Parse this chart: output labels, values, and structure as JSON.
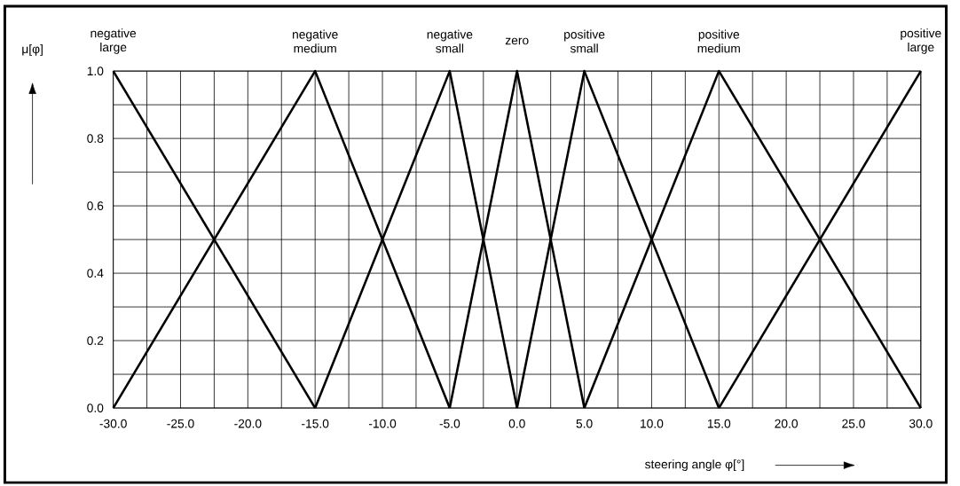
{
  "chart_data": {
    "type": "line",
    "xlabel": "steering angle   φ[°]",
    "ylabel": "μ[φ]",
    "series": [
      {
        "name": "negative large",
        "color": "#000000",
        "x": [
          -30,
          -15
        ],
        "values": [
          1.0,
          0.0
        ]
      },
      {
        "name": "negative medium",
        "color": "#000000",
        "x": [
          -30,
          -15,
          -5
        ],
        "values": [
          0.0,
          1.0,
          0.0
        ]
      },
      {
        "name": "negative small",
        "color": "#000000",
        "x": [
          -15,
          -5,
          0
        ],
        "values": [
          0.0,
          1.0,
          0.0
        ]
      },
      {
        "name": "zero",
        "color": "#000000",
        "x": [
          -5,
          0,
          5
        ],
        "values": [
          0.0,
          1.0,
          0.0
        ]
      },
      {
        "name": "positive small",
        "color": "#000000",
        "x": [
          0,
          5,
          15
        ],
        "values": [
          0.0,
          1.0,
          0.0
        ]
      },
      {
        "name": "positive medium",
        "color": "#000000",
        "x": [
          5,
          15,
          30
        ],
        "values": [
          0.0,
          1.0,
          0.0
        ]
      },
      {
        "name": "positive large",
        "color": "#000000",
        "x": [
          15,
          30
        ],
        "values": [
          0.0,
          1.0
        ]
      }
    ],
    "xlim": [
      -30,
      30
    ],
    "ylim": [
      0,
      1
    ],
    "xticks": [
      {
        "value": -30,
        "label": "-30.0"
      },
      {
        "value": -27.5,
        "label": null
      },
      {
        "value": -25,
        "label": "-25.0"
      },
      {
        "value": -22.5,
        "label": null
      },
      {
        "value": -20,
        "label": "-20.0"
      },
      {
        "value": -17.5,
        "label": null
      },
      {
        "value": -15,
        "label": "-15.0"
      },
      {
        "value": -12.5,
        "label": null
      },
      {
        "value": -10,
        "label": "-10.0"
      },
      {
        "value": -7.5,
        "label": null
      },
      {
        "value": -5,
        "label": "-5.0"
      },
      {
        "value": -2.5,
        "label": null
      },
      {
        "value": 0,
        "label": "0.0"
      },
      {
        "value": 2.5,
        "label": null
      },
      {
        "value": 5,
        "label": "5.0"
      },
      {
        "value": 7.5,
        "label": null
      },
      {
        "value": 10,
        "label": "10.0"
      },
      {
        "value": 12.5,
        "label": null
      },
      {
        "value": 15,
        "label": "15.0"
      },
      {
        "value": 17.5,
        "label": null
      },
      {
        "value": 20,
        "label": "20.0"
      },
      {
        "value": 22.5,
        "label": null
      },
      {
        "value": 25,
        "label": "25.0"
      },
      {
        "value": 27.5,
        "label": null
      },
      {
        "value": 30,
        "label": "30.0"
      }
    ],
    "yticks": [
      {
        "value": 0,
        "label": "0.0"
      },
      {
        "value": 0.1,
        "label": null
      },
      {
        "value": 0.2,
        "label": "0.2"
      },
      {
        "value": 0.3,
        "label": null
      },
      {
        "value": 0.4,
        "label": "0.4"
      },
      {
        "value": 0.5,
        "label": null
      },
      {
        "value": 0.6,
        "label": "0.6"
      },
      {
        "value": 0.7,
        "label": null
      },
      {
        "value": 0.8,
        "label": "0.8"
      },
      {
        "value": 0.9,
        "label": null
      },
      {
        "value": 1.0,
        "label": "1.0"
      }
    ],
    "grid": true,
    "legend": false,
    "marker": "none",
    "line_style": "solid"
  }
}
